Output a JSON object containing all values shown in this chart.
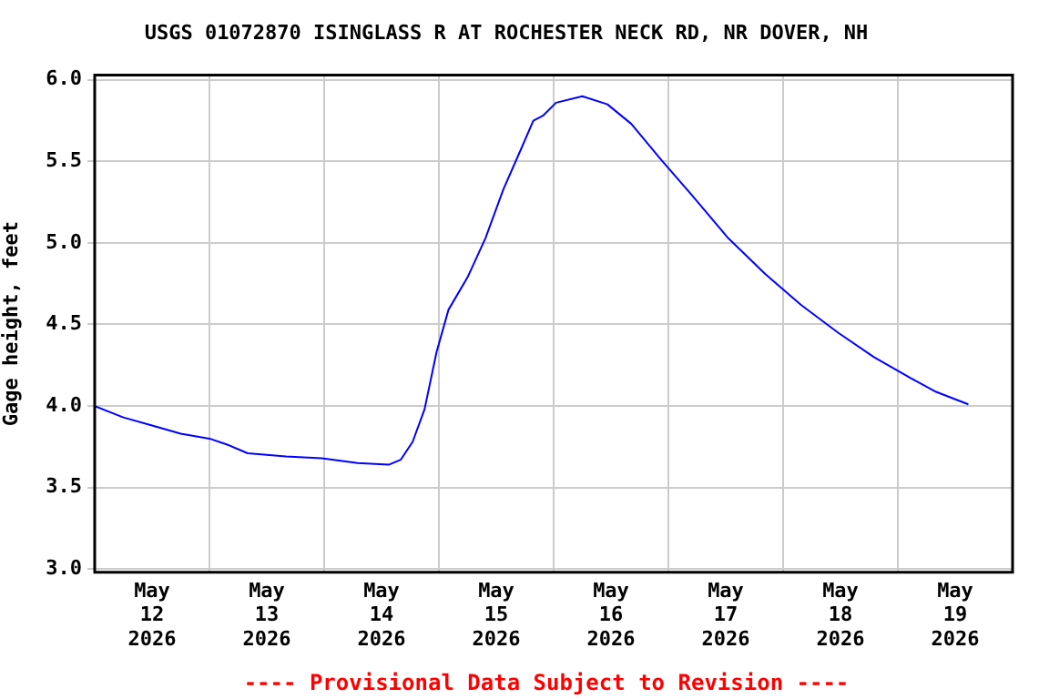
{
  "chart_data": {
    "type": "line",
    "title": "USGS 01072870 ISINGLASS R AT ROCHESTER NECK RD, NR DOVER, NH",
    "ylabel": "Gage height, feet",
    "annotations": [
      "---- Provisional Data Subject to Revision ----"
    ],
    "x": [
      "2026-05-12T00:00",
      "2026-05-12T06:00",
      "2026-05-12T12:00",
      "2026-05-12T18:00",
      "2026-05-13T00:00",
      "2026-05-13T04:00",
      "2026-05-13T08:00",
      "2026-05-13T16:00",
      "2026-05-13T23:30",
      "2026-05-14T07:00",
      "2026-05-14T13:30",
      "2026-05-14T16:00",
      "2026-05-14T18:30",
      "2026-05-14T21:00",
      "2026-05-14T23:30",
      "2026-05-15T02:00",
      "2026-05-15T06:00",
      "2026-05-15T09:45",
      "2026-05-15T13:30",
      "2026-05-15T17:15",
      "2026-05-15T19:45",
      "2026-05-15T21:45",
      "2026-05-16T00:30",
      "2026-05-16T06:00",
      "2026-05-16T11:15",
      "2026-05-16T16:15",
      "2026-05-16T22:30",
      "2026-05-17T05:00",
      "2026-05-17T12:30",
      "2026-05-17T20:15",
      "2026-05-18T03:45",
      "2026-05-18T11:30",
      "2026-05-18T19:00",
      "2026-05-19T02:45",
      "2026-05-19T07:45",
      "2026-05-19T14:45"
    ],
    "series": [
      {
        "color": "#0000ff",
        "values": [
          4.0,
          3.93,
          3.88,
          3.83,
          3.8,
          3.76,
          3.71,
          3.69,
          3.68,
          3.65,
          3.64,
          3.67,
          3.78,
          3.98,
          4.33,
          4.59,
          4.79,
          5.03,
          5.33,
          5.58,
          5.75,
          5.78,
          5.86,
          5.9,
          5.85,
          5.73,
          5.51,
          5.29,
          5.03,
          4.81,
          4.62,
          4.45,
          4.3,
          4.17,
          4.09,
          4.01
        ]
      }
    ],
    "xlim": [
      "2026-05-12T00:00",
      "2026-05-20T00:00"
    ],
    "xticks": [
      {
        "value": "2026-05-12T12:00",
        "label": "May 12 2026"
      },
      {
        "value": "2026-05-13T00:00",
        "label": null
      },
      {
        "value": "2026-05-13T12:00",
        "label": "May 13 2026"
      },
      {
        "value": "2026-05-14T00:00",
        "label": null
      },
      {
        "value": "2026-05-14T12:00",
        "label": "May 14 2026"
      },
      {
        "value": "2026-05-15T00:00",
        "label": null
      },
      {
        "value": "2026-05-15T12:00",
        "label": "May 15 2026"
      },
      {
        "value": "2026-05-16T00:00",
        "label": null
      },
      {
        "value": "2026-05-16T12:00",
        "label": "May 16 2026"
      },
      {
        "value": "2026-05-17T00:00",
        "label": null
      },
      {
        "value": "2026-05-17T12:00",
        "label": "May 17 2026"
      },
      {
        "value": "2026-05-18T00:00",
        "label": null
      },
      {
        "value": "2026-05-18T12:00",
        "label": "May 18 2026"
      },
      {
        "value": "2026-05-19T00:00",
        "label": null
      },
      {
        "value": "2026-05-19T12:00",
        "label": "May 19 2026"
      }
    ],
    "ylim": [
      2.98,
      6.03
    ],
    "yticks": [
      {
        "value": 3,
        "label": "3.0"
      },
      {
        "value": 3.5,
        "label": "3.5"
      },
      {
        "value": 4,
        "label": "4.0"
      },
      {
        "value": 4.5,
        "label": "4.5"
      },
      {
        "value": 5,
        "label": "5.0"
      },
      {
        "value": 5.5,
        "label": "5.5"
      },
      {
        "value": 6,
        "label": "6.0"
      }
    ],
    "grid": true,
    "legend": false,
    "marker": "none",
    "line_style": "solid"
  }
}
